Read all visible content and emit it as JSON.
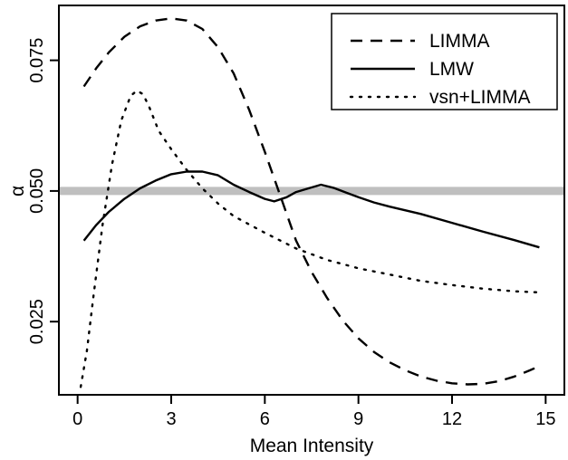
{
  "chart_data": {
    "type": "line",
    "title": "",
    "xlabel": "Mean Intensity",
    "ylabel": "α",
    "xlim": [
      -0.6,
      15.6
    ],
    "ylim": [
      0.011,
      0.0855
    ],
    "xticks": [
      0,
      3,
      6,
      9,
      12,
      15
    ],
    "xtick_labels": [
      "0",
      "3",
      "6",
      "9",
      "12",
      "15"
    ],
    "yticks": [
      0.025,
      0.05,
      0.075
    ],
    "ytick_labels": [
      "0.025",
      "0.050",
      "0.075"
    ],
    "reference_line": {
      "y": 0.05,
      "color": "#bfbfbf"
    },
    "grid": false,
    "legend_position": "top-right",
    "series": [
      {
        "name": "LIMMA",
        "style": "dashed",
        "color": "#000000",
        "x": [
          0.2,
          0.6,
          1.0,
          1.5,
          2.0,
          2.5,
          3.0,
          3.5,
          4.0,
          4.5,
          5.0,
          5.5,
          6.0,
          6.5,
          7.0,
          7.5,
          8.0,
          8.5,
          9.0,
          9.5,
          10.0,
          10.5,
          11.0,
          11.5,
          12.0,
          12.5,
          13.0,
          13.5,
          14.0,
          14.5,
          14.8
        ],
        "y": [
          0.07,
          0.0735,
          0.0765,
          0.0795,
          0.0815,
          0.0826,
          0.083,
          0.0826,
          0.081,
          0.0775,
          0.0725,
          0.0655,
          0.0575,
          0.049,
          0.0405,
          0.0345,
          0.0295,
          0.0252,
          0.0218,
          0.0192,
          0.0172,
          0.0157,
          0.0145,
          0.0137,
          0.0132,
          0.013,
          0.0131,
          0.0136,
          0.0145,
          0.0157,
          0.0165
        ]
      },
      {
        "name": "LMW",
        "style": "solid",
        "color": "#000000",
        "x": [
          0.2,
          0.6,
          1.0,
          1.5,
          2.0,
          2.5,
          3.0,
          3.5,
          4.0,
          4.5,
          5.0,
          5.5,
          6.0,
          6.3,
          6.7,
          7.0,
          7.4,
          7.8,
          8.2,
          8.6,
          9.0,
          9.5,
          10.0,
          11.0,
          12.0,
          13.0,
          14.0,
          14.8
        ],
        "y": [
          0.0405,
          0.0435,
          0.046,
          0.0485,
          0.0505,
          0.052,
          0.0532,
          0.0537,
          0.0537,
          0.053,
          0.0512,
          0.0498,
          0.0485,
          0.048,
          0.0488,
          0.0498,
          0.0505,
          0.0512,
          0.0506,
          0.0497,
          0.0488,
          0.0478,
          0.047,
          0.0456,
          0.0439,
          0.0422,
          0.0406,
          0.0392
        ]
      },
      {
        "name": "vsn+LIMMA",
        "style": "dotted",
        "color": "#000000",
        "x": [
          0.1,
          0.3,
          0.5,
          0.8,
          1.1,
          1.4,
          1.7,
          1.9,
          2.1,
          2.3,
          2.6,
          3.0,
          3.5,
          4.0,
          4.5,
          5.0,
          6.0,
          7.0,
          8.0,
          9.0,
          10.0,
          11.0,
          12.0,
          13.0,
          14.0,
          14.8
        ],
        "y": [
          0.0125,
          0.0195,
          0.0295,
          0.0435,
          0.055,
          0.0635,
          0.0682,
          0.0692,
          0.0685,
          0.066,
          0.0615,
          0.058,
          0.054,
          0.0505,
          0.0476,
          0.0452,
          0.042,
          0.039,
          0.0368,
          0.0352,
          0.034,
          0.0328,
          0.032,
          0.0313,
          0.0308,
          0.0306
        ]
      }
    ]
  }
}
